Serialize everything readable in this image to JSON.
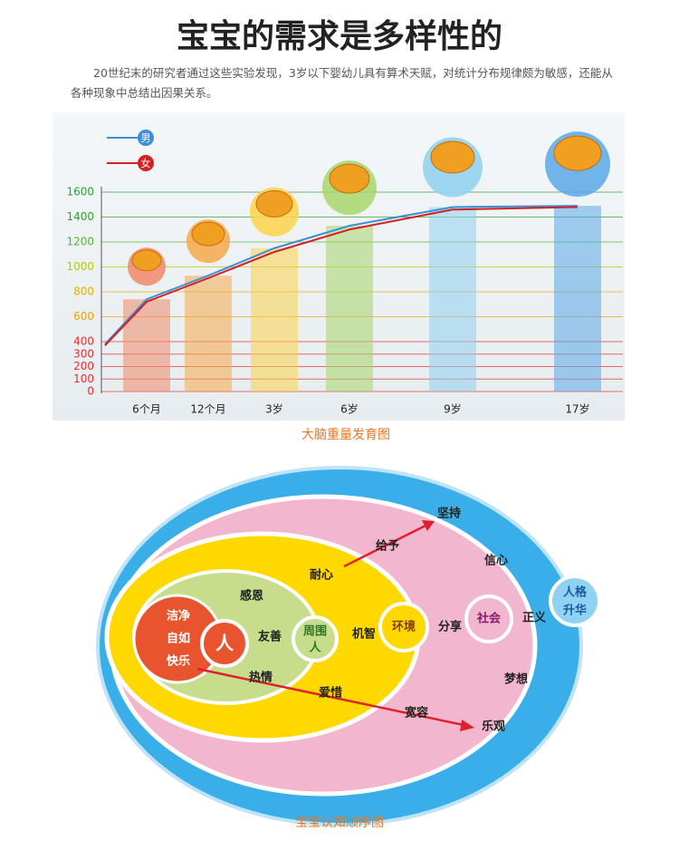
{
  "header": {
    "title": "宝宝的需求是多样性的",
    "text": "20世纪末的研究者通过这些实验发现，3岁以下婴幼儿具有算术天赋，对统计分布规律颇为敏感，还能从各种现象中总结出因果关系。"
  },
  "chart_data": {
    "type": "line",
    "caption": "大脑重量发育图",
    "categories": [
      null,
      "6个月",
      "12个月",
      "3岁",
      "6岁",
      "9岁",
      "17岁"
    ],
    "series": [
      {
        "name": "男",
        "color": "#3a8fd8",
        "values": [
          380,
          740,
          930,
          1150,
          1330,
          1480,
          1490
        ]
      },
      {
        "name": "女",
        "color": "#d42020",
        "values": [
          370,
          720,
          910,
          1120,
          1300,
          1460,
          1480
        ]
      }
    ],
    "ylim": [
      0,
      1600
    ],
    "yticks": [
      0,
      100,
      200,
      300,
      400,
      600,
      800,
      1000,
      1200,
      1400,
      1600
    ],
    "grid": true
  },
  "diagram": {
    "caption": "宝宝认知顺序图",
    "labels": [
      "洁净",
      "自如",
      "快乐",
      "人",
      "感恩",
      "友善",
      "热情",
      "周围",
      "人",
      "耐心",
      "机智",
      "爱惜",
      "环境",
      "给予",
      "坚持",
      "分享",
      "宽容",
      "乐观",
      "社会",
      "信心",
      "正义",
      "梦想",
      "人格",
      "升华"
    ]
  }
}
